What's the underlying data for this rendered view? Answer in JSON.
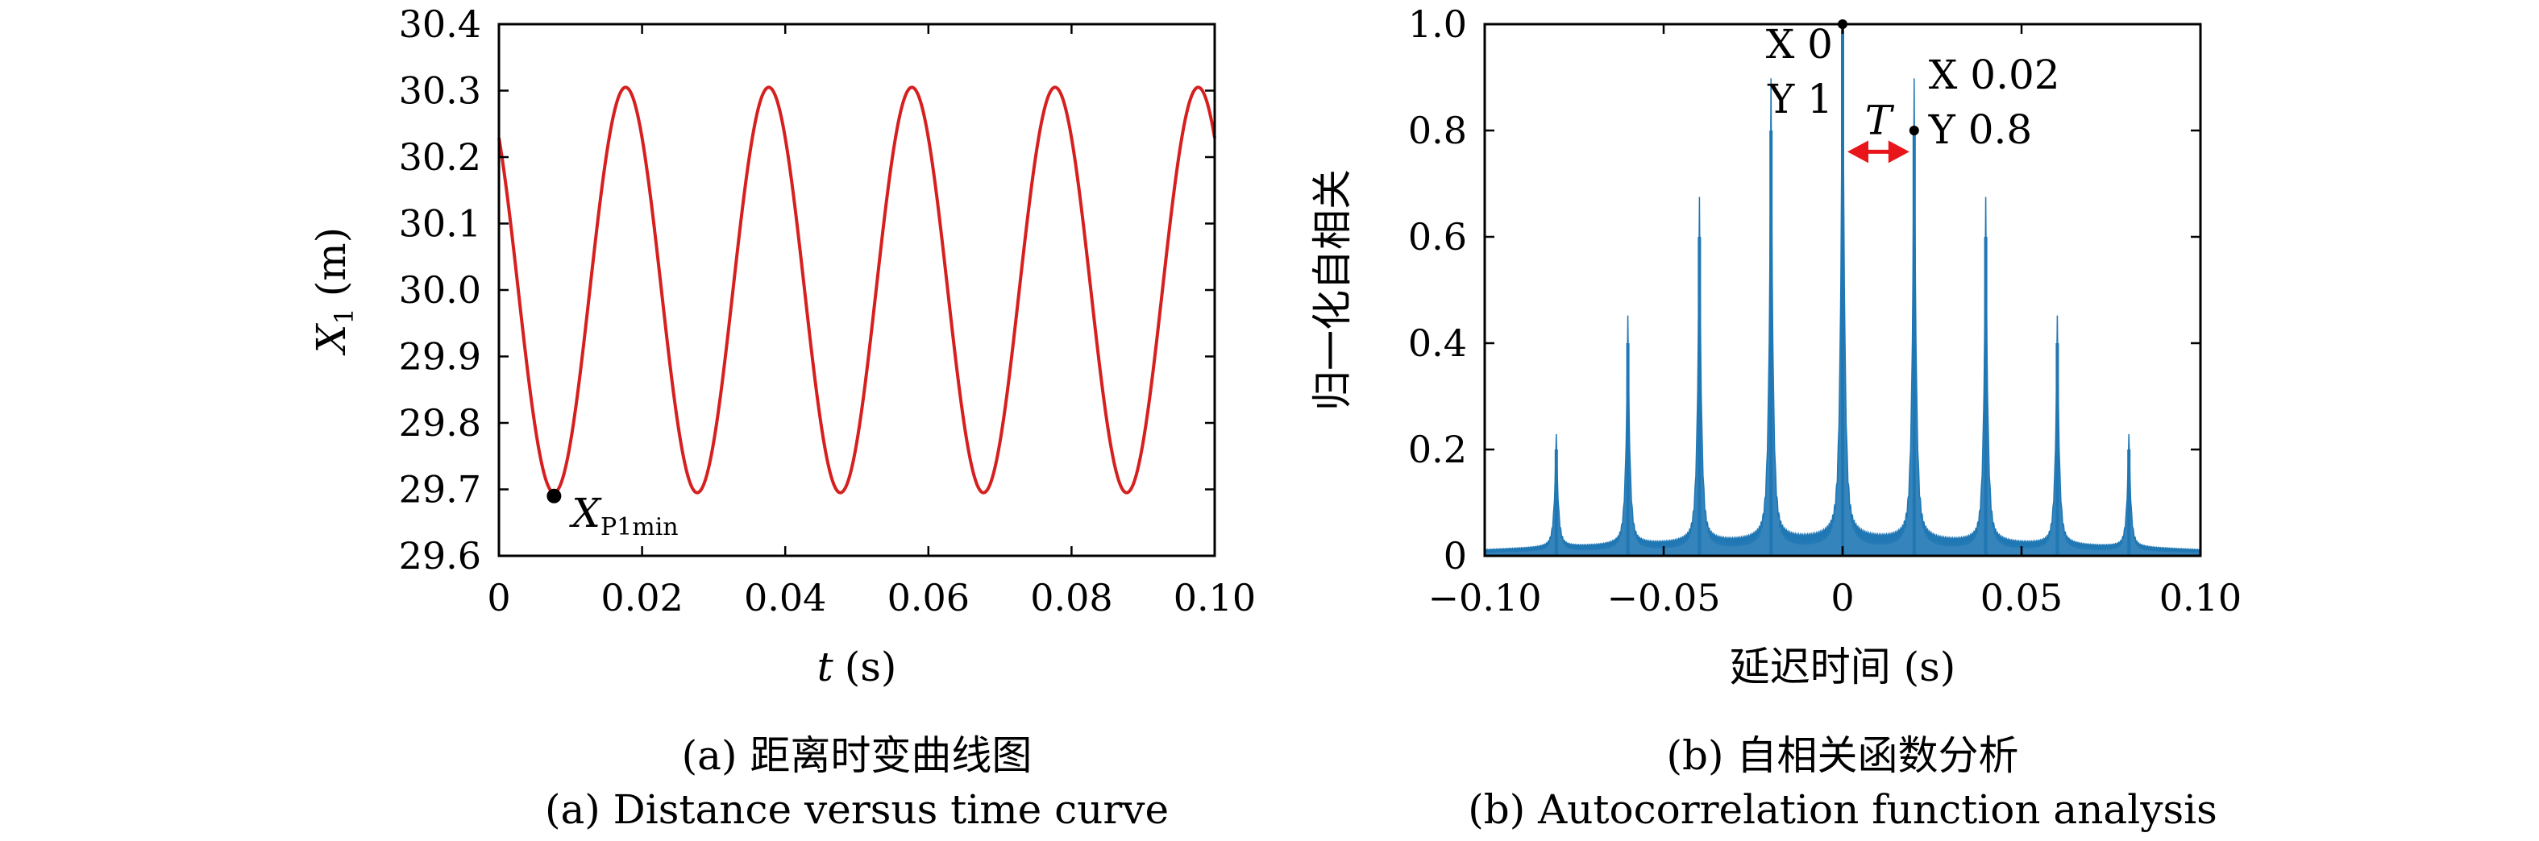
{
  "chart_data": [
    {
      "type": "line",
      "xlabel_var": "t",
      "xlabel_unit": "(s)",
      "ylabel_var": "X",
      "ylabel_sub": "1",
      "ylabel_unit": "(m)",
      "xlim": [
        0,
        0.1
      ],
      "ylim": [
        29.6,
        30.4
      ],
      "xticks": [
        "0",
        "0.02",
        "0.04",
        "0.06",
        "0.08",
        "0.10"
      ],
      "yticks": [
        "29.6",
        "29.7",
        "29.8",
        "29.9",
        "30.0",
        "30.1",
        "30.2",
        "30.3",
        "30.4"
      ],
      "series": [
        {
          "mean": 30.0,
          "amplitude": 0.305,
          "period": 0.02,
          "min_at": 0.0077,
          "color": "#d62020"
        }
      ],
      "annotation": {
        "x": 0.0077,
        "y": 29.69,
        "label_main": "X",
        "label_sub": "P1min"
      },
      "caption_cn": "(a) 距离时变曲线图",
      "caption_en": "(a) Distance versus time curve"
    },
    {
      "type": "line",
      "xlabel": "延迟时间 (s)",
      "ylabel": "归一化自相关",
      "xlim": [
        -0.1,
        0.1
      ],
      "ylim": [
        0,
        1.0
      ],
      "xticks": [
        "−0.10",
        "−0.05",
        "0",
        "0.05",
        "0.10"
      ],
      "yticks": [
        "0",
        "0.2",
        "0.4",
        "0.6",
        "0.8",
        "1.0"
      ],
      "peaks": [
        {
          "x": -0.08,
          "y": 0.2
        },
        {
          "x": -0.06,
          "y": 0.4
        },
        {
          "x": -0.04,
          "y": 0.6
        },
        {
          "x": -0.02,
          "y": 0.8
        },
        {
          "x": 0.0,
          "y": 1.0
        },
        {
          "x": 0.02,
          "y": 0.8
        },
        {
          "x": 0.04,
          "y": 0.6
        },
        {
          "x": 0.06,
          "y": 0.4
        },
        {
          "x": 0.08,
          "y": 0.2
        }
      ],
      "color": "#1f77b4",
      "markers": [
        {
          "x": 0.0,
          "y": 1.0,
          "xtext": "X 0",
          "ytext": "Y 1"
        },
        {
          "x": 0.02,
          "y": 0.8,
          "xtext": "X 0.02",
          "ytext": "Y 0.8"
        }
      ],
      "period_label": "T",
      "arrow_color": "#e8161b",
      "caption_cn": "(b) 自相关函数分析",
      "caption_en": "(b) Autocorrelation function analysis"
    }
  ]
}
